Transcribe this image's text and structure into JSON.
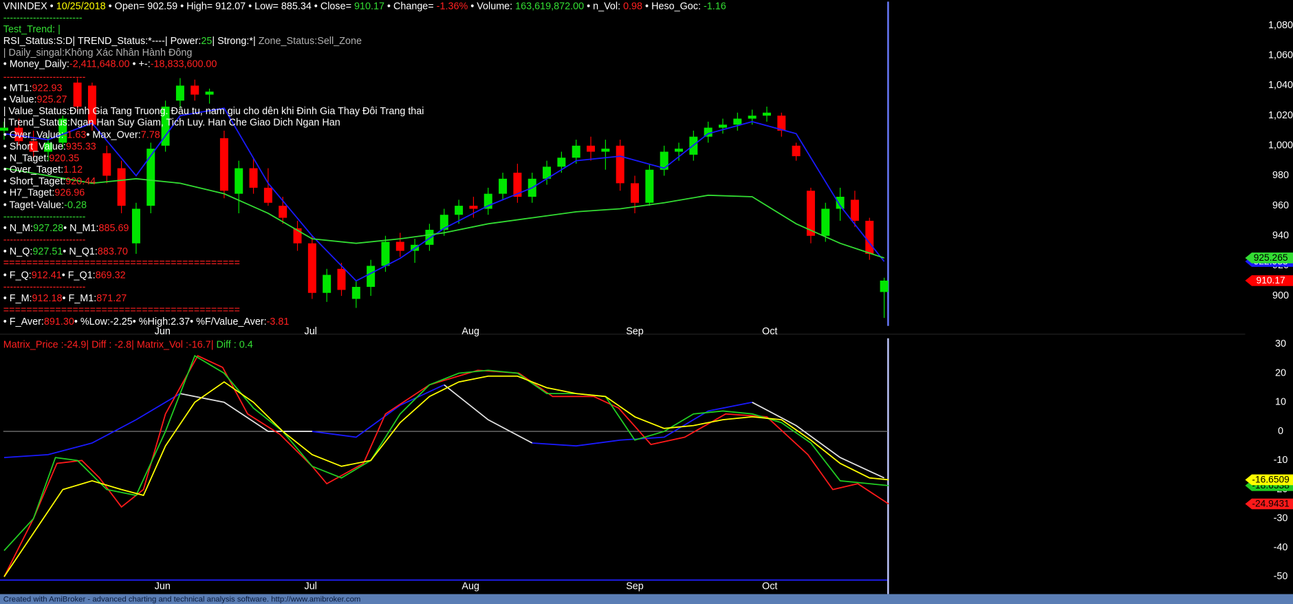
{
  "chart_data": [
    {
      "type": "candlestick",
      "x": [
        0,
        1,
        2,
        3,
        4,
        5,
        6,
        7,
        8,
        9,
        10,
        11,
        12,
        13,
        14,
        15,
        16,
        17,
        18,
        19,
        20,
        21,
        22,
        23,
        24,
        25,
        26,
        27,
        28,
        29,
        30,
        31,
        32,
        33,
        34,
        35,
        36,
        37,
        38,
        39,
        40,
        41,
        42,
        43,
        44,
        45,
        46,
        47,
        48,
        49,
        50,
        51,
        52,
        53,
        54,
        55,
        56,
        57,
        58,
        59,
        60
      ],
      "open": [
        1010,
        1012,
        1003,
        996,
        1002,
        1042,
        1040,
        995,
        985,
        935,
        960,
        1000,
        1030,
        1040,
        1034,
        1005,
        968,
        985,
        972,
        960,
        945,
        935,
        902,
        918,
        898,
        906,
        920,
        936,
        930,
        934,
        944,
        954,
        960,
        958,
        968,
        982,
        966,
        978,
        986,
        992,
        1000,
        996,
        1000,
        975,
        962,
        984,
        996,
        994,
        1006,
        1012,
        1014,
        1018,
        1020,
        1020,
        1000,
        970,
        940,
        958,
        964,
        950,
        902.59
      ],
      "high": [
        1016,
        1018,
        1010,
        1006,
        1020,
        1045,
        1042,
        1000,
        990,
        962,
        1002,
        1030,
        1045,
        1044,
        1038,
        1010,
        990,
        992,
        985,
        966,
        950,
        940,
        918,
        922,
        910,
        924,
        940,
        942,
        938,
        948,
        958,
        964,
        966,
        972,
        982,
        988,
        982,
        990,
        996,
        1004,
        1006,
        1004,
        1004,
        980,
        988,
        1000,
        1002,
        1010,
        1016,
        1018,
        1022,
        1024,
        1026,
        1022,
        1002,
        972,
        962,
        972,
        970,
        952,
        912.07
      ],
      "low": [
        1004,
        1000,
        992,
        990,
        998,
        1022,
        1010,
        975,
        955,
        928,
        955,
        996,
        1025,
        1030,
        1028,
        965,
        955,
        968,
        960,
        948,
        930,
        898,
        896,
        900,
        892,
        900,
        916,
        926,
        922,
        930,
        940,
        948,
        952,
        954,
        964,
        962,
        962,
        974,
        982,
        988,
        990,
        984,
        970,
        955,
        960,
        980,
        990,
        990,
        1002,
        1008,
        1010,
        1014,
        1016,
        1006,
        990,
        935,
        936,
        950,
        946,
        924,
        885.34
      ],
      "close": [
        1012,
        1003,
        996,
        1002,
        1018,
        1026,
        1014,
        980,
        960,
        958,
        998,
        1026,
        1040,
        1034,
        1036,
        970,
        985,
        972,
        962,
        952,
        935,
        902,
        914,
        904,
        906,
        920,
        936,
        930,
        934,
        944,
        954,
        960,
        958,
        968,
        978,
        966,
        978,
        986,
        992,
        1000,
        996,
        998,
        975,
        962,
        984,
        996,
        998,
        1006,
        1012,
        1014,
        1018,
        1020,
        1022,
        1010,
        993,
        940,
        958,
        966,
        950,
        928,
        910.17
      ],
      "up_color": "#00e600",
      "down_color": "#ff0000",
      "close_tag": {
        "color": "#ff0000",
        "text_color": "#ffffff"
      },
      "xlim": [
        0,
        61
      ],
      "ylim": [
        880,
        1097
      ],
      "xticks": [
        {
          "value": 10.8,
          "label": "Jun"
        },
        {
          "value": 20.9,
          "label": "Jul"
        },
        {
          "value": 31.8,
          "label": "Aug"
        },
        {
          "value": 43,
          "label": "Sep"
        },
        {
          "value": 52.2,
          "label": "Oct"
        }
      ],
      "yticks": [
        900,
        920,
        940,
        960,
        980,
        {
          "value": 1000,
          "label": "1,000"
        },
        {
          "value": 1020,
          "label": "1,020"
        },
        {
          "value": 1040,
          "label": "1,040"
        },
        {
          "value": 1060,
          "label": "1,060"
        },
        {
          "value": 1080,
          "label": "1,080"
        }
      ],
      "series": [
        {
          "color": "#1a1aff",
          "tag_text_color": "#ffffff",
          "x": [
            0,
            3,
            6,
            9,
            12,
            15,
            18,
            21,
            24,
            27,
            30,
            33,
            36,
            39,
            42,
            45,
            48,
            51,
            54,
            57,
            60
          ],
          "values": [
            1008,
            1004,
            1015,
            980,
            1020,
            1025,
            975,
            940,
            910,
            925,
            945,
            960,
            972,
            990,
            993,
            985,
            1008,
            1016,
            1008,
            960,
            922.933
          ]
        },
        {
          "color": "#33dd33",
          "tag_text_color": "#000000",
          "x": [
            0,
            3,
            6,
            9,
            12,
            15,
            18,
            21,
            24,
            27,
            30,
            33,
            36,
            39,
            42,
            45,
            48,
            51,
            54,
            57,
            60
          ],
          "values": [
            985,
            980,
            975,
            978,
            975,
            968,
            955,
            938,
            935,
            938,
            942,
            948,
            952,
            956,
            958,
            962,
            967,
            966,
            948,
            935,
            925.265
          ]
        }
      ]
    },
    {
      "type": "line",
      "title_segments": [
        {
          "text": "Matrix_Price :-24.9|   Diff : -2.8| Matrix_Vol :-16.7|",
          "color": "#ff2020"
        },
        {
          "text": "   Diff : 0.4",
          "color": "#33dd33"
        }
      ],
      "xlim": [
        0,
        61
      ],
      "ylim": [
        -51.7,
        32
      ],
      "ref_line": 0,
      "xticks": [
        {
          "value": 10.8,
          "label": "Jun"
        },
        {
          "value": 20.9,
          "label": "Jul"
        },
        {
          "value": 31.8,
          "label": "Aug"
        },
        {
          "value": 43,
          "label": "Sep"
        },
        {
          "value": 52.2,
          "label": "Oct"
        }
      ],
      "yticks": [
        -50,
        -40,
        -30,
        -20,
        -10,
        0,
        10,
        20,
        30
      ],
      "series": [
        {
          "color": "#1a1aff",
          "x": [
            0,
            3,
            6,
            9,
            12,
            15,
            18,
            21,
            24,
            27,
            30,
            33,
            36,
            39,
            42,
            45,
            48,
            51,
            54,
            57,
            60
          ],
          "values": [
            -9,
            -8,
            -4,
            4,
            13,
            null,
            null,
            0,
            -2,
            9,
            16,
            null,
            -4,
            -5,
            -3,
            -2,
            7,
            10,
            null,
            null,
            null
          ]
        },
        {
          "color": "#e0e0e0",
          "x": [
            0,
            3,
            6,
            9,
            12,
            15,
            18,
            21,
            24,
            27,
            30,
            33,
            36,
            39,
            42,
            45,
            48,
            51,
            54,
            57,
            60
          ],
          "values": [
            null,
            null,
            null,
            null,
            13,
            10,
            0,
            0,
            null,
            null,
            16,
            4,
            -4,
            null,
            null,
            null,
            null,
            10,
            2,
            -9,
            -16
          ]
        },
        {
          "color": "#ff1a1a",
          "tag_text_color": "#000000",
          "x": [
            0,
            2,
            3.6,
            5.3,
            6.5,
            8,
            9.5,
            11,
            13.2,
            14.9,
            16.6,
            18.8,
            21,
            22,
            24.5,
            26,
            29,
            32.3,
            35.1,
            37.4,
            40.2,
            41.9,
            44.1,
            46.4,
            49.2,
            52,
            54.8,
            56.5,
            58.2,
            60.3
          ],
          "values": [
            -50,
            -30,
            -11,
            -10,
            -16,
            -26,
            -20,
            6,
            26,
            22,
            6,
            -1,
            -12,
            -18,
            -11,
            6,
            16,
            21,
            20,
            12,
            12,
            8,
            -4.5,
            -2,
            6,
            5,
            -8,
            -20,
            -18,
            -24.9431
          ]
        },
        {
          "color": "#22cc22",
          "tag_text_color": "#000000",
          "x": [
            0,
            2,
            3.5,
            5,
            7,
            9,
            11,
            13,
            15,
            17,
            19,
            21,
            23,
            25,
            27,
            29,
            31,
            33,
            35,
            37,
            39,
            41,
            43,
            45,
            47,
            49,
            51,
            53,
            55,
            57,
            59,
            60.3
          ],
          "values": [
            -41,
            -30,
            -9,
            -10,
            -20,
            -22,
            0,
            26,
            20,
            8,
            0,
            -12,
            -16,
            -10,
            6,
            16,
            20,
            21,
            20,
            13,
            13,
            12,
            -3,
            0,
            6,
            7,
            6,
            3,
            -4,
            -17,
            -18,
            -18.6538
          ]
        },
        {
          "color": "#ffff00",
          "tag_text_color": "#000000",
          "x": [
            0,
            2,
            4,
            6,
            8,
            9.5,
            11,
            13,
            15,
            17,
            19,
            21,
            23,
            25,
            27,
            29,
            31,
            33,
            35,
            37,
            39,
            41,
            43,
            45,
            47,
            49,
            51,
            53,
            55,
            57,
            59,
            60.3
          ],
          "values": [
            -50,
            -35,
            -20,
            -17,
            -20,
            -22,
            -5,
            10,
            17,
            10,
            0,
            -8,
            -12,
            -10,
            3,
            12,
            17,
            19,
            19,
            15,
            13,
            12,
            5,
            1,
            2,
            4,
            5,
            4,
            -3,
            -11,
            -16,
            -16.6509
          ]
        }
      ]
    }
  ],
  "info_panel": {
    "lines": [
      [
        {
          "text": "VNINDEX",
          "color": "#ffffff"
        },
        {
          "text": " • ",
          "color": "#ffffff"
        },
        {
          "text": "10/25/2018",
          "color": "#ffff00"
        },
        {
          "text": " • Open= 902.59 • High= 912.07 • Low= 885.34 • Close= ",
          "color": "#ffffff"
        },
        {
          "text": "910.17",
          "color": "#33dd33"
        },
        {
          "text": " • Change= ",
          "color": "#ffffff"
        },
        {
          "text": "-1.36%",
          "color": "#ff2020"
        },
        {
          "text": " • Volume: ",
          "color": "#ffffff"
        },
        {
          "text": "163,619,872.00",
          "color": "#33dd33"
        },
        {
          "text": " • n_Vol: ",
          "color": "#ffffff"
        },
        {
          "text": "0.98",
          "color": "#ff2020"
        },
        {
          "text": " • Heso_Goc: ",
          "color": "#ffffff"
        },
        {
          "text": "-1.16",
          "color": "#33dd33"
        }
      ],
      [
        {
          "text": "------------------------",
          "color": "#33dd33"
        }
      ],
      [
        {
          "text": "Test_Trend: |",
          "color": "#33dd33"
        }
      ],
      [
        {
          "text": "RSI_Status:S:D| TREND_Status:*----| Power:",
          "color": "#ffffff"
        },
        {
          "text": "25",
          "color": "#33dd33"
        },
        {
          "text": "| Strong:*| ",
          "color": "#ffffff"
        },
        {
          "text": "Zone_Status:Sell_Zone",
          "color": "#b0b0b0"
        }
      ],
      [
        {
          "text": "| Daily_singal:Không Xác Nhân Hành Đông",
          "color": "#b0b0b0"
        }
      ],
      [
        {
          "text": "• Money_Daily:",
          "color": "#ffffff"
        },
        {
          "text": "-2,411,648.00",
          "color": "#ff2020"
        },
        {
          "text": " • +-:",
          "color": "#ffffff"
        },
        {
          "text": "-18,833,600.00",
          "color": "#ff2020"
        }
      ],
      [
        {
          "text": "-------------------------",
          "color": "#ff2020"
        }
      ],
      [
        {
          "text": "• MT1:",
          "color": "#ffffff"
        },
        {
          "text": "922.93",
          "color": "#ff2020"
        }
      ],
      [
        {
          "text": "• Value:",
          "color": "#ffffff"
        },
        {
          "text": "925.27",
          "color": "#ff2020"
        }
      ],
      [
        {
          "text": "| Value_Status:Đinh Gia Tang Truong. Đâu tu, nam giu cho dên khi Đinh Gia Thay Đôi Trang thai",
          "color": "#ffffff"
        }
      ],
      [
        {
          "text": "| Trend_Status:Ngan Han Suy Giam, Tich Luy. Han Che Giao Dich Ngan Han",
          "color": "#ffffff"
        }
      ],
      [
        {
          "text": "• Over_Value:",
          "color": "#ffffff"
        },
        {
          "text": "-1.63",
          "color": "#ff2020"
        },
        {
          "text": "• Max_Over:",
          "color": "#ffffff"
        },
        {
          "text": "7.78",
          "color": "#ff2020"
        }
      ],
      [
        {
          "text": "• Short_Value:",
          "color": "#ffffff"
        },
        {
          "text": "935.33",
          "color": "#ff2020"
        }
      ],
      [
        {
          "text": "• N_Taget:",
          "color": "#ffffff"
        },
        {
          "text": "920.35",
          "color": "#ff2020"
        }
      ],
      [
        {
          "text": "• Over_Taget:",
          "color": "#ffffff"
        },
        {
          "text": "1.12",
          "color": "#ff2020"
        }
      ],
      [
        {
          "text": "• Short_Taget:",
          "color": "#ffffff"
        },
        {
          "text": "920.44",
          "color": "#ff2020"
        }
      ],
      [
        {
          "text": "• H7_Taget:",
          "color": "#ffffff"
        },
        {
          "text": "926.96",
          "color": "#ff2020"
        }
      ],
      [
        {
          "text": "• Taget-Value:",
          "color": "#ffffff"
        },
        {
          "text": "-0.28",
          "color": "#33dd33"
        }
      ],
      [
        {
          "text": "-------------------------",
          "color": "#33dd33"
        }
      ],
      [
        {
          "text": "• N_M:",
          "color": "#ffffff"
        },
        {
          "text": "927.28",
          "color": "#33dd33"
        },
        {
          "text": "• N_M1:",
          "color": "#ffffff"
        },
        {
          "text": "885.69",
          "color": "#ff2020"
        }
      ],
      [
        {
          "text": "-------------------------",
          "color": "#ff2020"
        }
      ],
      [
        {
          "text": "• N_Q:",
          "color": "#ffffff"
        },
        {
          "text": "927.51",
          "color": "#33dd33"
        },
        {
          "text": "• N_Q1:",
          "color": "#ffffff"
        },
        {
          "text": "883.70",
          "color": "#ff2020"
        }
      ],
      [
        {
          "text": "=========================================",
          "color": "#ff2020"
        }
      ],
      [
        {
          "text": "• F_Q:",
          "color": "#ffffff"
        },
        {
          "text": "912.41",
          "color": "#ff2020"
        },
        {
          "text": "• F_Q1:",
          "color": "#ffffff"
        },
        {
          "text": "869.32",
          "color": "#ff2020"
        }
      ],
      [
        {
          "text": "-------------------------",
          "color": "#ff2020"
        }
      ],
      [
        {
          "text": "• F_M:",
          "color": "#ffffff"
        },
        {
          "text": "912.18",
          "color": "#ff2020"
        },
        {
          "text": "• F_M1:",
          "color": "#ffffff"
        },
        {
          "text": "871.27",
          "color": "#ff2020"
        }
      ],
      [
        {
          "text": "=========================================",
          "color": "#ff2020"
        }
      ],
      [
        {
          "text": "• F_Aver:",
          "color": "#ffffff"
        },
        {
          "text": "891.30",
          "color": "#ff2020"
        },
        {
          "text": "• %Low:-2.25• %High:2.37• %F/Value_Aver:",
          "color": "#ffffff"
        },
        {
          "text": "-3.81",
          "color": "#ff2020"
        }
      ]
    ]
  },
  "footer": {
    "text": "Created with AmiBroker - advanced charting and technical analysis software. http://www.amibroker.com"
  }
}
